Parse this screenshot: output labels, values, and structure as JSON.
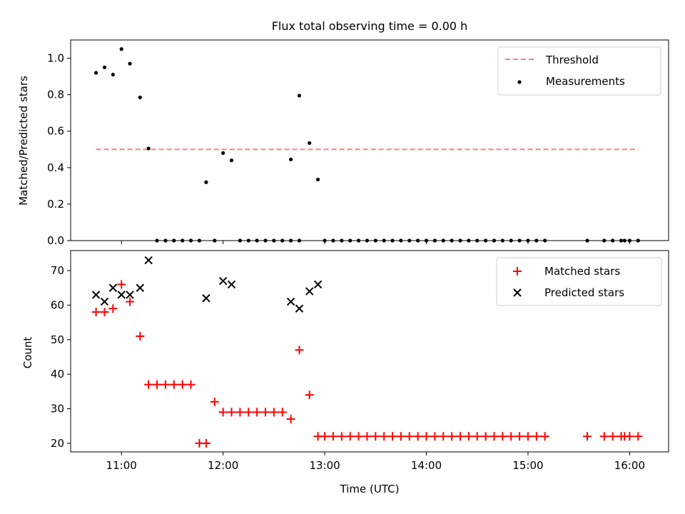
{
  "title": "Flux total observing time = 0.00 h",
  "chart_data": [
    {
      "type": "scatter",
      "ylabel": "Matched/Predicted stars",
      "ylim": [
        0,
        1.1
      ],
      "yticks": [
        0.0,
        0.2,
        0.4,
        0.6,
        0.8,
        1.0
      ],
      "ytick_labels": [
        "0.0",
        "0.2",
        "0.4",
        "0.6",
        "0.8",
        "1.0"
      ],
      "xlim": [
        "10:30",
        "16:23"
      ],
      "xticks": [
        "11:00",
        "12:00",
        "13:00",
        "14:00",
        "15:00",
        "16:00"
      ],
      "show_x_tick_labels": false,
      "threshold": {
        "name": "Threshold",
        "value": 0.5,
        "x_range": [
          "10:45",
          "16:05"
        ],
        "color": "#ff7f7f"
      },
      "series": [
        {
          "name": "Measurements",
          "color": "#000000",
          "points": [
            [
              "10:45",
              0.92
            ],
            [
              "10:50",
              0.95
            ],
            [
              "10:55",
              0.91
            ],
            [
              "11:00",
              1.05
            ],
            [
              "11:05",
              0.97
            ],
            [
              "11:11",
              0.785
            ],
            [
              "11:16",
              0.505
            ],
            [
              "11:21",
              0
            ],
            [
              "11:26",
              0
            ],
            [
              "11:31",
              0
            ],
            [
              "11:36",
              0
            ],
            [
              "11:41",
              0
            ],
            [
              "11:46",
              0
            ],
            [
              "11:50",
              0.32
            ],
            [
              "11:55",
              0
            ],
            [
              "12:00",
              0.48
            ],
            [
              "12:05",
              0.44
            ],
            [
              "12:10",
              0
            ],
            [
              "12:15",
              0
            ],
            [
              "12:20",
              0
            ],
            [
              "12:25",
              0
            ],
            [
              "12:30",
              0
            ],
            [
              "12:35",
              0
            ],
            [
              "12:40",
              0
            ],
            [
              "12:45",
              0
            ],
            [
              "12:40",
              0.445
            ],
            [
              "12:45",
              0.795
            ],
            [
              "12:51",
              0.535
            ],
            [
              "12:56",
              0.335
            ],
            [
              "13:00",
              0
            ],
            [
              "13:05",
              0
            ],
            [
              "13:10",
              0
            ],
            [
              "13:15",
              0
            ],
            [
              "13:20",
              0
            ],
            [
              "13:25",
              0
            ],
            [
              "13:30",
              0
            ],
            [
              "13:35",
              0
            ],
            [
              "13:40",
              0
            ],
            [
              "13:45",
              0
            ],
            [
              "13:50",
              0
            ],
            [
              "13:55",
              0
            ],
            [
              "14:00",
              0
            ],
            [
              "14:05",
              0
            ],
            [
              "14:10",
              0
            ],
            [
              "14:15",
              0
            ],
            [
              "14:20",
              0
            ],
            [
              "14:25",
              0
            ],
            [
              "14:30",
              0
            ],
            [
              "14:35",
              0
            ],
            [
              "14:40",
              0
            ],
            [
              "14:45",
              0
            ],
            [
              "14:50",
              0
            ],
            [
              "14:55",
              0
            ],
            [
              "15:00",
              0
            ],
            [
              "15:05",
              0
            ],
            [
              "15:10",
              0
            ],
            [
              "15:35",
              0
            ],
            [
              "15:45",
              0
            ],
            [
              "15:50",
              0
            ],
            [
              "15:55",
              0
            ],
            [
              "15:57",
              0
            ],
            [
              "16:00",
              0
            ],
            [
              "16:05",
              0
            ]
          ]
        }
      ],
      "legend": "top-right"
    },
    {
      "type": "scatter",
      "xlabel": "Time (UTC)",
      "ylabel": "Count",
      "ylim": [
        17.5,
        75.8
      ],
      "yticks": [
        20,
        30,
        40,
        50,
        60,
        70
      ],
      "ytick_labels": [
        "20",
        "30",
        "40",
        "50",
        "60",
        "70"
      ],
      "xlim": [
        "10:30",
        "16:23"
      ],
      "xticks": [
        "11:00",
        "12:00",
        "13:00",
        "14:00",
        "15:00",
        "16:00"
      ],
      "xtick_labels": [
        "11:00",
        "12:00",
        "13:00",
        "14:00",
        "15:00",
        "16:00"
      ],
      "series": [
        {
          "name": "Matched stars",
          "marker": "plus",
          "color": "#ff0000",
          "points": [
            [
              "10:45",
              58
            ],
            [
              "10:50",
              58
            ],
            [
              "10:55",
              59
            ],
            [
              "11:00",
              66
            ],
            [
              "11:05",
              61
            ],
            [
              "11:11",
              51
            ],
            [
              "11:16",
              37
            ],
            [
              "11:21",
              37
            ],
            [
              "11:26",
              37
            ],
            [
              "11:31",
              37
            ],
            [
              "11:36",
              37
            ],
            [
              "11:41",
              37
            ],
            [
              "11:46",
              20
            ],
            [
              "11:50",
              20
            ],
            [
              "11:55",
              32
            ],
            [
              "12:00",
              29
            ],
            [
              "12:05",
              29
            ],
            [
              "12:10",
              29
            ],
            [
              "12:15",
              29
            ],
            [
              "12:20",
              29
            ],
            [
              "12:25",
              29
            ],
            [
              "12:30",
              29
            ],
            [
              "12:35",
              29
            ],
            [
              "12:40",
              27
            ],
            [
              "12:45",
              47
            ],
            [
              "12:51",
              34
            ],
            [
              "12:56",
              22
            ],
            [
              "13:00",
              22
            ],
            [
              "13:05",
              22
            ],
            [
              "13:10",
              22
            ],
            [
              "13:15",
              22
            ],
            [
              "13:20",
              22
            ],
            [
              "13:25",
              22
            ],
            [
              "13:30",
              22
            ],
            [
              "13:35",
              22
            ],
            [
              "13:40",
              22
            ],
            [
              "13:45",
              22
            ],
            [
              "13:50",
              22
            ],
            [
              "13:55",
              22
            ],
            [
              "14:00",
              22
            ],
            [
              "14:05",
              22
            ],
            [
              "14:10",
              22
            ],
            [
              "14:15",
              22
            ],
            [
              "14:20",
              22
            ],
            [
              "14:25",
              22
            ],
            [
              "14:30",
              22
            ],
            [
              "14:35",
              22
            ],
            [
              "14:40",
              22
            ],
            [
              "14:45",
              22
            ],
            [
              "14:50",
              22
            ],
            [
              "14:55",
              22
            ],
            [
              "15:00",
              22
            ],
            [
              "15:05",
              22
            ],
            [
              "15:10",
              22
            ],
            [
              "15:35",
              22
            ],
            [
              "15:45",
              22
            ],
            [
              "15:50",
              22
            ],
            [
              "15:55",
              22
            ],
            [
              "15:57",
              22
            ],
            [
              "16:00",
              22
            ],
            [
              "16:05",
              22
            ]
          ]
        },
        {
          "name": "Predicted stars",
          "marker": "x",
          "color": "#000000",
          "points": [
            [
              "10:45",
              63
            ],
            [
              "10:50",
              61
            ],
            [
              "10:55",
              65
            ],
            [
              "11:00",
              63
            ],
            [
              "11:05",
              63
            ],
            [
              "11:11",
              65
            ],
            [
              "11:16",
              73
            ],
            [
              "11:50",
              62
            ],
            [
              "12:00",
              67
            ],
            [
              "12:05",
              66
            ],
            [
              "12:40",
              61
            ],
            [
              "12:45",
              59
            ],
            [
              "12:51",
              64
            ],
            [
              "12:56",
              66
            ]
          ]
        }
      ],
      "legend": "top-right"
    }
  ]
}
